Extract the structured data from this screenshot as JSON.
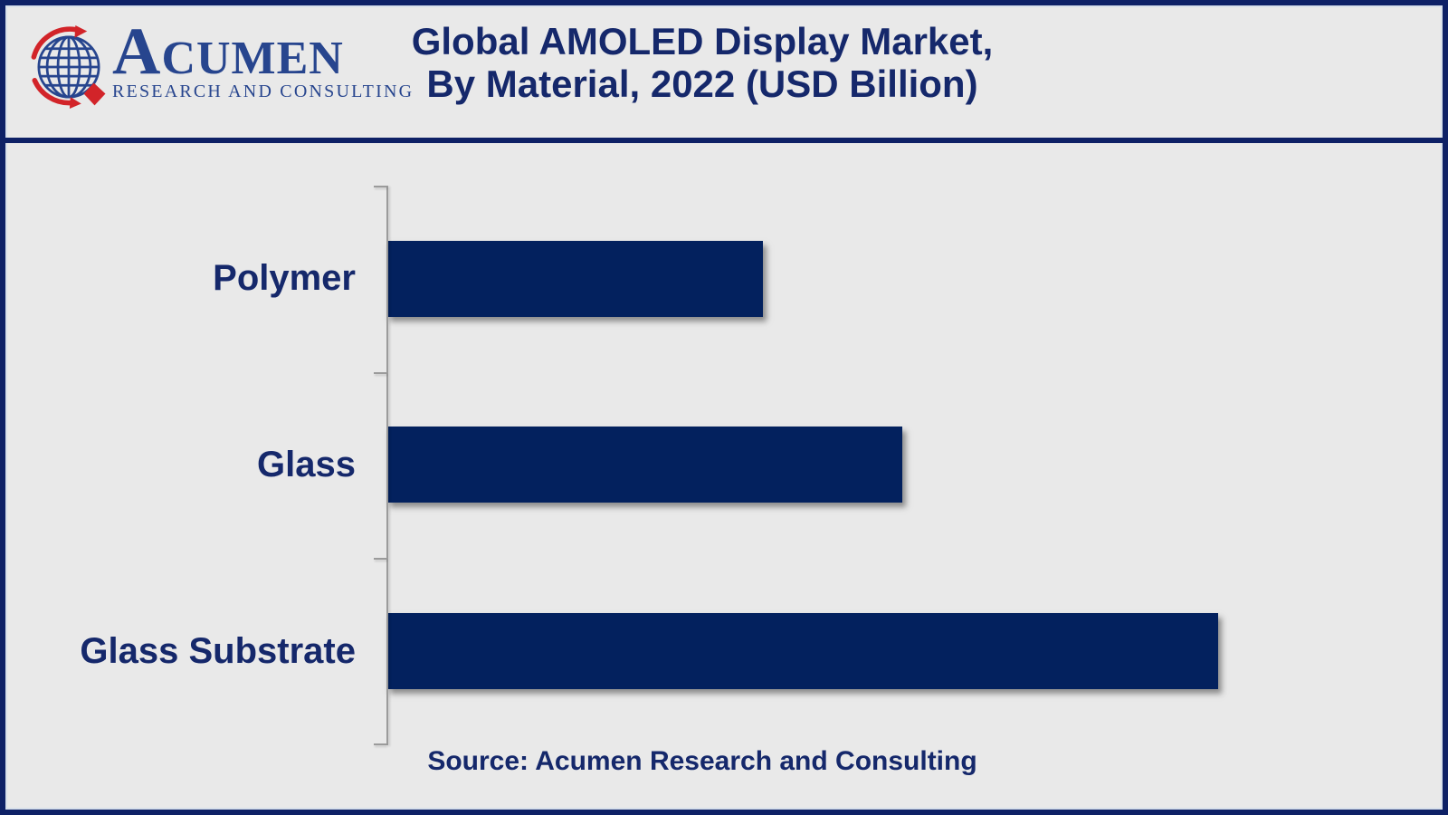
{
  "header": {
    "logo": {
      "brand_name": "Acumen",
      "brand_subtitle": "RESEARCH AND CONSULTING",
      "logo_blue": "#27458e",
      "logo_red": "#d22429"
    },
    "title_line1": "Global AMOLED Display Market,",
    "title_line2": "By Material, 2022 (USD Billion)"
  },
  "chart_data": {
    "type": "bar",
    "orientation": "horizontal",
    "title": "Global AMOLED Display Market, By Material, 2022 (USD Billion)",
    "categories": [
      "Polymer",
      "Glass",
      "Glass Substrate"
    ],
    "values": [
      6.2,
      8.5,
      13.7
    ],
    "unit": "USD Billion",
    "xlabel": "",
    "ylabel": "",
    "xlim": [
      0,
      16
    ],
    "grid": false,
    "legend": false,
    "axis_tick_count": 4,
    "bar_color": "#03215e",
    "axis_color": "#9b9b9b",
    "background_color": "#e9e9e9"
  },
  "footer": {
    "source_label": "Source: Acumen Research and Consulting"
  },
  "colors": {
    "frame_border": "#0e2166",
    "text_navy": "#15286b"
  }
}
